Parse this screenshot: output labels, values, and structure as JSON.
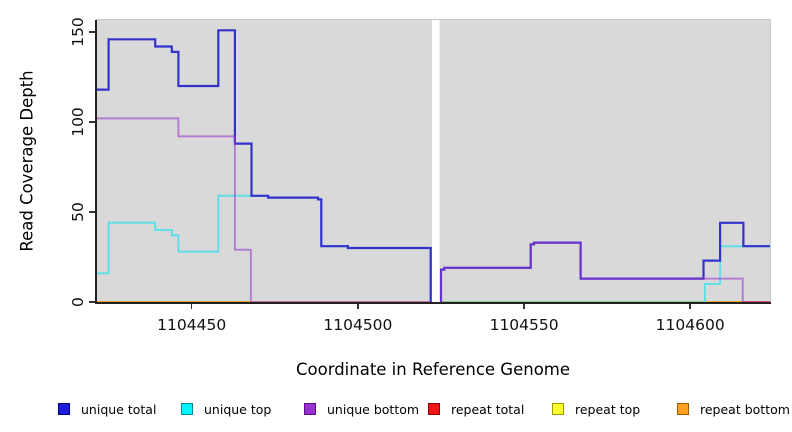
{
  "chart_data": {
    "type": "line",
    "subtype": "step-coverage",
    "title": "",
    "xlabel": "Coordinate in Reference Genome",
    "ylabel": "Read Coverage Depth",
    "x_domain": [
      1104421.5,
      1104624
    ],
    "ylim": [
      0,
      156.7
    ],
    "grid": "off",
    "panel_background": "#D9D9D9",
    "x_ticks": [
      {
        "g": 1104450,
        "label": "1104450"
      },
      {
        "g": 1104500,
        "label": "1104500"
      },
      {
        "g": 1104550,
        "label": "1104550"
      },
      {
        "g": 1104600,
        "label": "1104600"
      }
    ],
    "y_ticks": [
      {
        "v": 0,
        "label": "0"
      },
      {
        "v": 50,
        "label": "50"
      },
      {
        "v": 100,
        "label": "100"
      },
      {
        "v": 150,
        "label": "150"
      }
    ],
    "no_data_gap": {
      "x1": 1104522.3,
      "x2": 1104524.6,
      "color": "#FFFFFF"
    },
    "series": [
      {
        "id": "unique-top",
        "name": "unique top",
        "color": "#5FE0E8",
        "opacity": 1,
        "width": 2,
        "draw": true,
        "segments": [
          [
            [
              1104421.5,
              16
            ],
            [
              1104425,
              44
            ],
            [
              1104439,
              40
            ],
            [
              1104444,
              37
            ],
            [
              1104446,
              28
            ],
            [
              1104458,
              59
            ],
            [
              1104473,
              58
            ],
            [
              1104488,
              57
            ],
            [
              1104489,
              31
            ],
            [
              1104497,
              30
            ],
            [
              1104521.9,
              0
            ],
            [
              1104522.2,
              0
            ]
          ],
          [
            [
              1104604,
              0
            ],
            [
              1104604.4,
              10
            ],
            [
              1104609,
              31
            ],
            [
              1104624,
              31
            ]
          ]
        ]
      },
      {
        "id": "unique-total",
        "name": "unique total",
        "color": "#3333CC",
        "opacity": 1,
        "width": 2.2,
        "draw": true,
        "segments": [
          [
            [
              1104421.5,
              118
            ],
            [
              1104425,
              146
            ],
            [
              1104439,
              142
            ],
            [
              1104444,
              139
            ],
            [
              1104446,
              120
            ],
            [
              1104458,
              151
            ],
            [
              1104463,
              88
            ],
            [
              1104468,
              59
            ],
            [
              1104473,
              58
            ],
            [
              1104488,
              57
            ],
            [
              1104489,
              31
            ],
            [
              1104497,
              30
            ],
            [
              1104521.9,
              0
            ],
            [
              1104522.2,
              0
            ]
          ],
          [
            [
              1104524.7,
              0
            ],
            [
              1104525,
              18
            ],
            [
              1104526,
              19
            ],
            [
              1104552,
              32
            ],
            [
              1104553,
              33
            ],
            [
              1104567,
              13
            ],
            [
              1104604,
              23
            ],
            [
              1104609,
              44
            ],
            [
              1104616,
              31
            ],
            [
              1104624,
              31
            ]
          ]
        ]
      },
      {
        "id": "unique-bottom",
        "name": "unique bottom",
        "color": "#9933CC",
        "opacity": 0.55,
        "width": 2,
        "draw": true,
        "segments": [
          [
            [
              1104421.5,
              102
            ],
            [
              1104446,
              92
            ],
            [
              1104463,
              29
            ],
            [
              1104467.8,
              0
            ],
            [
              1104468.2,
              0
            ]
          ],
          [
            [
              1104524.7,
              0
            ],
            [
              1104525,
              18
            ],
            [
              1104526,
              19
            ],
            [
              1104552,
              32
            ],
            [
              1104553,
              33
            ],
            [
              1104567,
              13
            ],
            [
              1104615.8,
              0
            ],
            [
              1104616.2,
              0
            ]
          ]
        ]
      },
      {
        "id": "repeat-total",
        "name": "repeat total",
        "color": "#E02020",
        "opacity": 1,
        "width": 2,
        "draw": false,
        "segments": [
          [
            [
              1104421.5,
              0
            ],
            [
              1104522.2,
              0
            ]
          ],
          [
            [
              1104524.7,
              0
            ],
            [
              1104624,
              0
            ]
          ]
        ]
      },
      {
        "id": "repeat-top",
        "name": "repeat top",
        "color": "#F5F52A",
        "opacity": 1,
        "width": 2,
        "draw": false,
        "segments": [
          [
            [
              1104421.5,
              0
            ],
            [
              1104522.2,
              0
            ]
          ],
          [
            [
              1104524.7,
              0
            ],
            [
              1104624,
              0
            ]
          ]
        ]
      },
      {
        "id": "repeat-bottom",
        "name": "repeat bottom",
        "color": "#FFA028",
        "opacity": 1,
        "width": 2,
        "draw": false,
        "segments": [
          [
            [
              1104421.5,
              0
            ],
            [
              1104522.2,
              0
            ]
          ],
          [
            [
              1104524.7,
              0
            ],
            [
              1104624,
              0
            ]
          ]
        ]
      }
    ],
    "zero_line_segments": [
      {
        "x1": 1104421.5,
        "x2": 1104468,
        "color": "#FFA028"
      },
      {
        "x1": 1104468,
        "x2": 1104522.2,
        "color": "#C76CA2"
      },
      {
        "x1": 1104524.7,
        "x2": 1104604,
        "color": "#85C785"
      },
      {
        "x1": 1104604,
        "x2": 1104616,
        "color": "#FFA028"
      },
      {
        "x1": 1104616,
        "x2": 1104624,
        "color": "#D14A7E"
      }
    ]
  },
  "legend": {
    "items": [
      {
        "label": "unique total",
        "fill": "#1C1CDC",
        "border": "#00007A"
      },
      {
        "label": "unique top",
        "fill": "#00F5FF",
        "border": "#008B9B"
      },
      {
        "label": "unique bottom",
        "fill": "#9B30D0",
        "border": "#5B0E8E"
      },
      {
        "label": "repeat total",
        "fill": "#F01414",
        "border": "#8B0000"
      },
      {
        "label": "repeat top",
        "fill": "#FFFF2E",
        "border": "#9B9B00"
      },
      {
        "label": "repeat bottom",
        "fill": "#FFA01E",
        "border": "#A05A00"
      }
    ]
  }
}
